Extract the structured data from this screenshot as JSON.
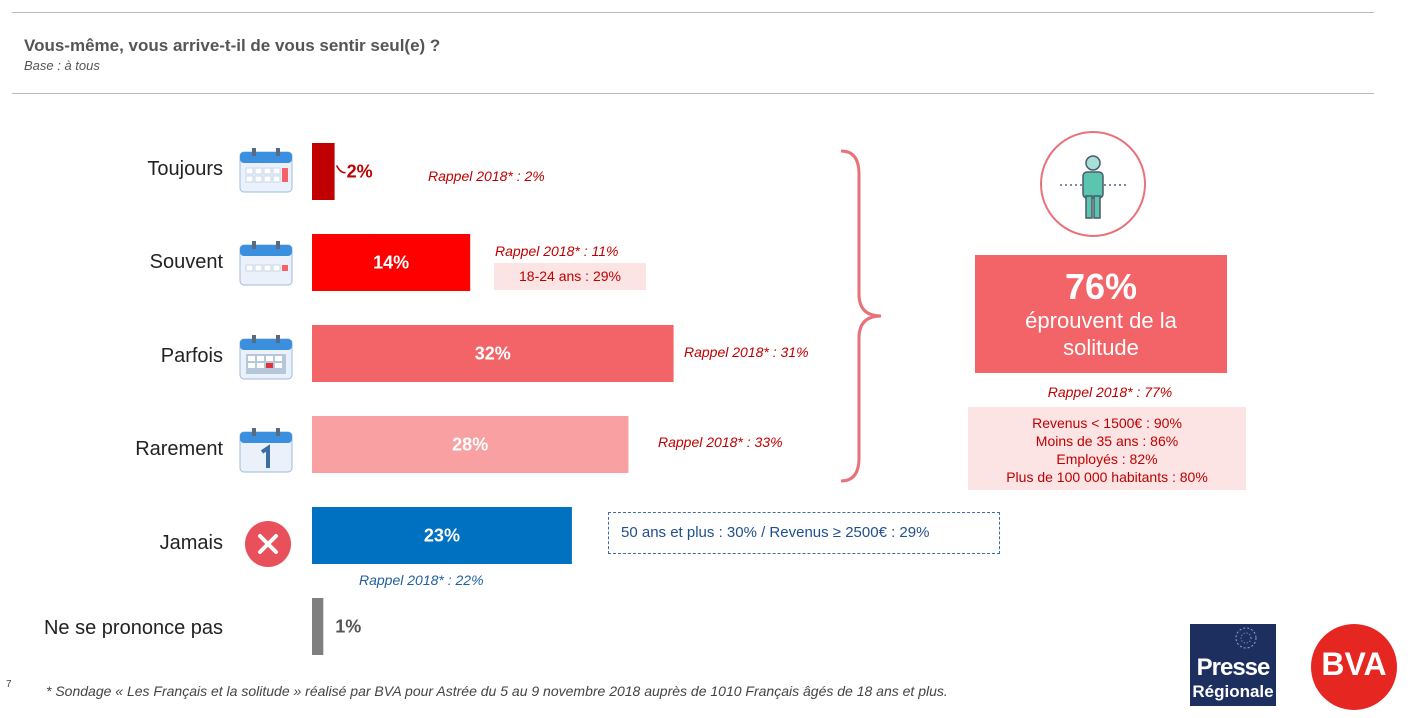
{
  "header": {
    "title": "Vous-même, vous arrive-t-il de vous sentir seul(e) ?",
    "subtitle": "Base : à tous"
  },
  "chart_data": {
    "type": "bar",
    "orientation": "horizontal",
    "categories": [
      "Toujours",
      "Souvent",
      "Parfois",
      "Rarement",
      "Jamais",
      "Ne se prononce pas"
    ],
    "values": [
      2,
      14,
      32,
      28,
      23,
      1
    ],
    "value_labels": [
      "2%",
      "14%",
      "32%",
      "28%",
      "23%",
      "1%"
    ],
    "colors": [
      "#c00000",
      "#ff0000",
      "#f26467",
      "#f9a0a2",
      "#0070c0",
      "#7f7f7f"
    ],
    "unit": "%",
    "recall": {
      "toujours": "Rappel 2018* : 2%",
      "souvent": "Rappel 2018* : 11%",
      "souvent_detail": "18-24 ans : 29%",
      "parfois": "Rappel 2018* : 31%",
      "rarement": "Rappel 2018* : 33%",
      "jamais": "Rappel 2018* : 22%",
      "jamais_detail": "50 ans et plus : 30% / Revenus ≥ 2500€ : 29%"
    }
  },
  "summary": {
    "pct": "76%",
    "text": "éprouvent de la solitude",
    "rappel": "Rappel 2018* : 77%",
    "details": [
      "Revenus < 1500€ : 90%",
      "Moins de 35 ans : 86%",
      "Employés : 82%",
      "Plus de 100 000 habitants : 80%"
    ],
    "icon": "person-icon"
  },
  "footnote": "* Sondage « Les Français et la solitude » réalisé par BVA pour Astrée du 5 au 9 novembre 2018 auprès de 1010 Français âgés de 18 ans et plus.",
  "page_number": "7",
  "logos": {
    "presse_line1": "Presse",
    "presse_line2": "Régionale",
    "bva": "BVA"
  },
  "icons": [
    "calendar-icon",
    "close-icon"
  ]
}
